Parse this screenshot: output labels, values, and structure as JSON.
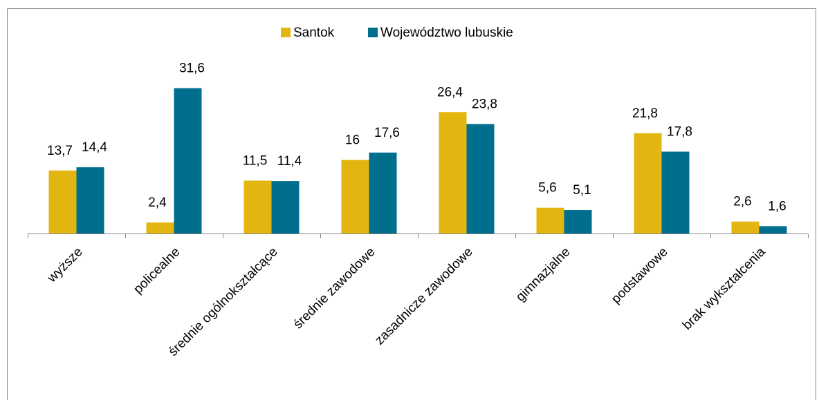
{
  "chart_data": {
    "type": "bar",
    "categories": [
      "wyższe",
      "policealne",
      "średnie ogólnokształcące",
      "średnie zawodowe",
      "zasadnicze zawodowe",
      "gimnazjalne",
      "podstawowe",
      "brak wykształcenia"
    ],
    "series": [
      {
        "name": "Santok",
        "color": "#e3b510",
        "values": [
          13.7,
          2.4,
          11.5,
          16,
          26.4,
          5.6,
          21.8,
          2.6
        ],
        "value_labels": [
          "13,7",
          "2,4",
          "11,5",
          "16",
          "26,4",
          "5,6",
          "21,8",
          "2,6"
        ]
      },
      {
        "name": "Województwo lubuskie",
        "color": "#006f8e",
        "values": [
          14.4,
          31.6,
          11.4,
          17.6,
          23.8,
          5.1,
          17.8,
          1.6
        ],
        "value_labels": [
          "14,4",
          "31,6",
          "11,4",
          "17,6",
          "23,8",
          "5,1",
          "17,8",
          "1,6"
        ]
      }
    ],
    "ylim": [
      0,
      35
    ],
    "legend": "top"
  }
}
